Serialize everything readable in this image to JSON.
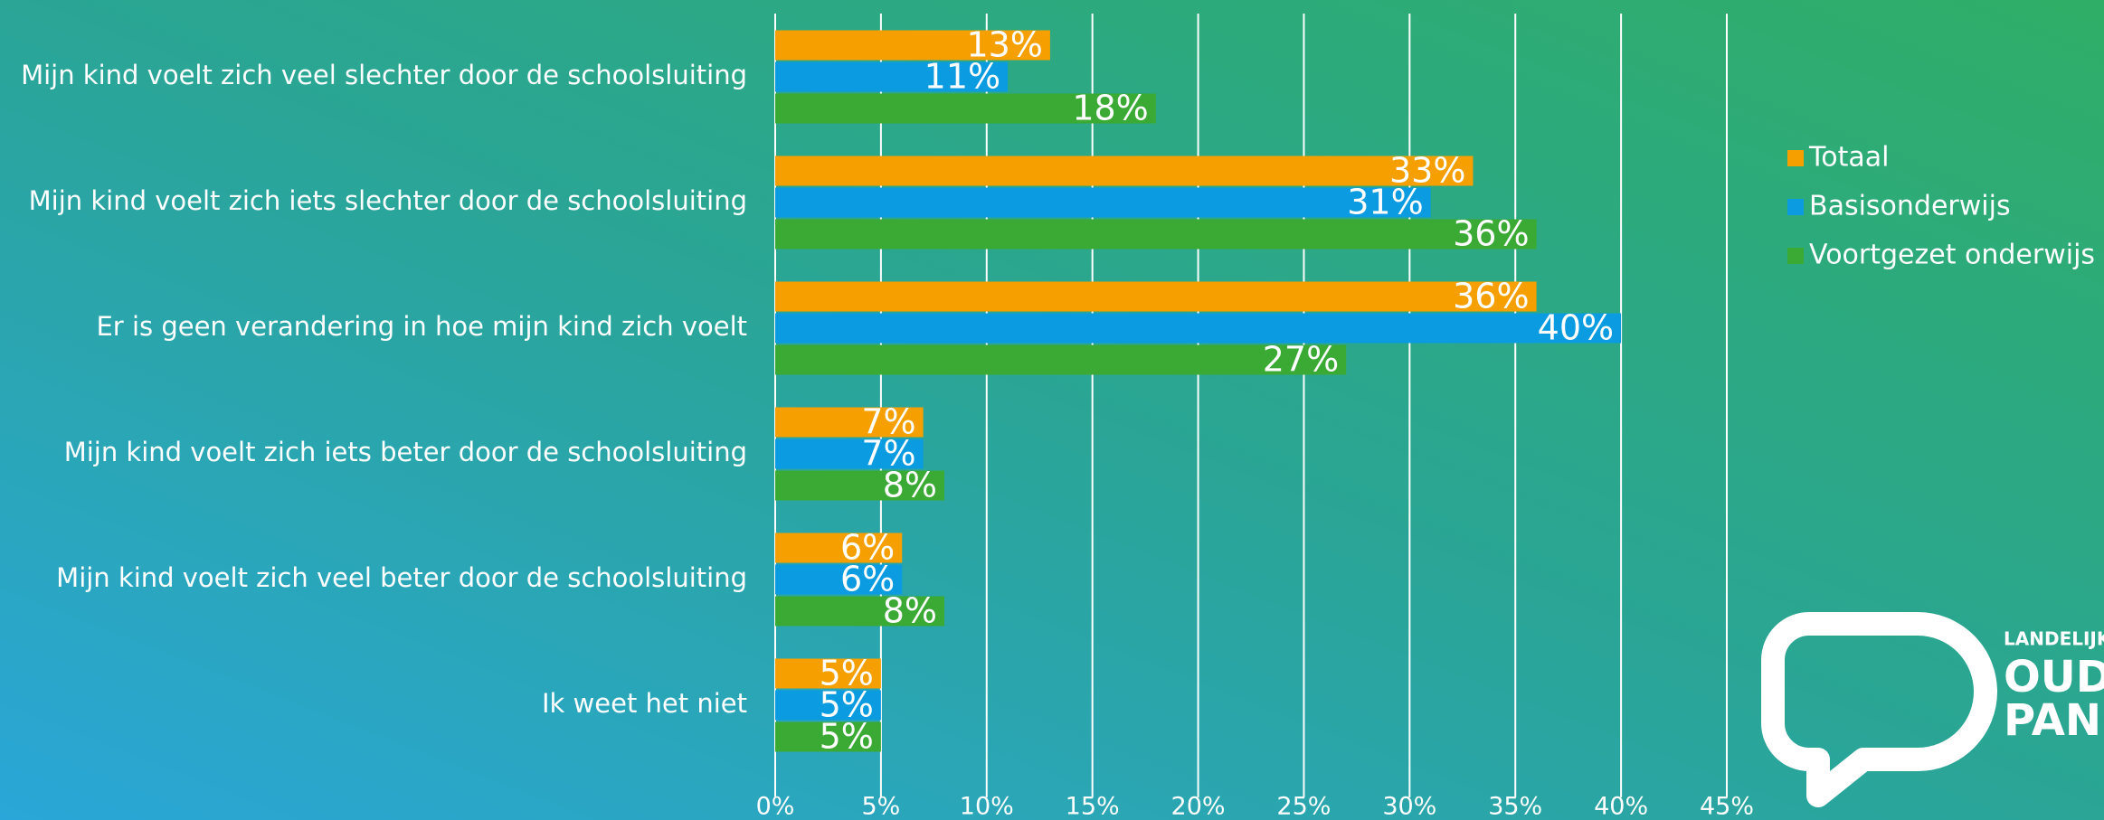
{
  "chart_data": {
    "type": "bar",
    "orientation": "horizontal",
    "categories": [
      "Mijn kind voelt zich veel slechter door de schoolsluiting",
      "Mijn kind voelt zich iets slechter door de schoolsluiting",
      "Er is geen verandering in hoe mijn kind zich voelt",
      "Mijn kind voelt zich iets beter door de schoolsluiting",
      "Mijn kind voelt zich veel beter door de schoolsluiting",
      "Ik weet het niet"
    ],
    "series": [
      {
        "name": "Totaal",
        "color": "#f5a000",
        "values": [
          13,
          33,
          36,
          7,
          6,
          5
        ],
        "value_labels": [
          "13%",
          "33%",
          "36%",
          "7%",
          "6%",
          "5%"
        ]
      },
      {
        "name": "Basisonderwijs",
        "color": "#0a9be0",
        "values": [
          11,
          31,
          40,
          7,
          6,
          5
        ],
        "value_labels": [
          "11%",
          "31%",
          "40%",
          "7%",
          "6%",
          "5%"
        ]
      },
      {
        "name": "Voortgezet onderwijs",
        "color": "#3aaa35",
        "values": [
          18,
          36,
          27,
          8,
          8,
          5
        ],
        "value_labels": [
          "18%",
          "36%",
          "27%",
          "8%",
          "8%",
          "5%"
        ]
      }
    ],
    "xlim": [
      0,
      45
    ],
    "xticks": [
      {
        "value": 0,
        "label": "0%"
      },
      {
        "value": 5,
        "label": "5%"
      },
      {
        "value": 10,
        "label": "10%"
      },
      {
        "value": 15,
        "label": "15%"
      },
      {
        "value": 20,
        "label": "20%"
      },
      {
        "value": 25,
        "label": "25%"
      },
      {
        "value": 30,
        "label": "30%"
      },
      {
        "value": 35,
        "label": "35%"
      },
      {
        "value": 40,
        "label": "40%"
      },
      {
        "value": 45,
        "label": "45%"
      }
    ],
    "grid": true,
    "legend": "right"
  },
  "logo": {
    "lines": [
      "LANDELIJK",
      "OUD",
      "PAN"
    ]
  }
}
